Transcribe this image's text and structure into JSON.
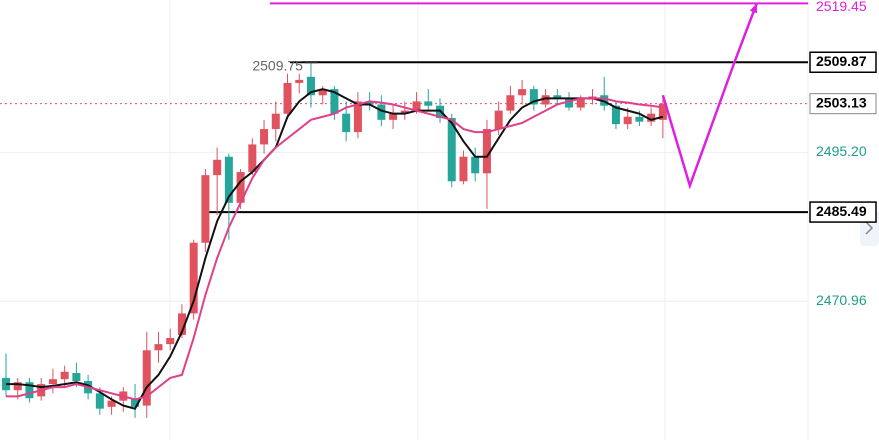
{
  "chart_data": {
    "type": "candlestick",
    "up_color": "#e0525e",
    "down_color": "#26a69a",
    "ylim": [
      2448.4,
      2520
    ],
    "yticks": [
      {
        "value": 2495.2,
        "label": "2495.20"
      },
      2470.96
    ],
    "grid": true,
    "open": [
      2458.5,
      2456.5,
      2457.8,
      2455.5,
      2457.5,
      2458.3,
      2459.3,
      2458.0,
      2456.0,
      2453.8,
      2454.8,
      2455.2,
      2454.0,
      2463.0,
      2464.0,
      2465.5,
      2469.0,
      2480.5,
      2491.5,
      2494.5,
      2487.0,
      2492.0,
      2496.5,
      2499.0,
      2501.5,
      2506.5,
      2507.5,
      2504.5,
      2505.5,
      2501.5,
      2498.5,
      2503.5,
      2503.0,
      2500.5,
      2501.5,
      2502.0,
      2503.5,
      2502.8,
      2500.8,
      2490.5,
      2494.5,
      2491.8,
      2499.0,
      2502.0,
      2504.5,
      2505.5,
      2503.0,
      2504.5,
      2504.0,
      2502.5,
      2503.8,
      2504.5,
      2502.8,
      2499.8,
      2501.0,
      2500.2,
      2500.5
    ],
    "high": [
      2462.5,
      2458.5,
      2458.5,
      2458.5,
      2460.0,
      2460.5,
      2461.0,
      2459.0,
      2457.0,
      2455.5,
      2457.0,
      2457.5,
      2466.0,
      2466.0,
      2466.5,
      2470.5,
      2481.0,
      2492.5,
      2496.0,
      2495.0,
      2492.5,
      2497.5,
      2500.5,
      2503.5,
      2508.0,
      2508.0,
      2509.75,
      2506.0,
      2506.0,
      2503.5,
      2505.0,
      2505.0,
      2504.5,
      2503.0,
      2503.5,
      2505.0,
      2505.5,
      2504.0,
      2501.5,
      2495.5,
      2496.0,
      2500.5,
      2503.5,
      2506.0,
      2507.0,
      2506.0,
      2505.5,
      2505.5,
      2505.0,
      2504.5,
      2505.5,
      2507.5,
      2503.5,
      2502.5,
      2502.0,
      2502.5,
      2504.5
    ],
    "low": [
      2455.5,
      2455.0,
      2454.5,
      2454.8,
      2456.0,
      2457.0,
      2457.0,
      2455.0,
      2452.5,
      2452.5,
      2453.0,
      2452.0,
      2452.0,
      2461.0,
      2463.0,
      2465.0,
      2468.0,
      2479.0,
      2485.0,
      2481.0,
      2486.0,
      2491.5,
      2495.0,
      2497.0,
      2501.0,
      2504.8,
      2502.5,
      2503.0,
      2500.5,
      2497.0,
      2497.5,
      2502.0,
      2499.5,
      2499.0,
      2500.5,
      2501.5,
      2502.0,
      2500.0,
      2489.5,
      2490.0,
      2490.5,
      2486.0,
      2498.0,
      2501.5,
      2503.0,
      2502.0,
      2502.5,
      2503.0,
      2502.0,
      2502.0,
      2503.0,
      2502.0,
      2499.0,
      2499.0,
      2499.5,
      2499.5,
      2497.5
    ],
    "close": [
      2456.5,
      2457.8,
      2455.2,
      2457.5,
      2458.3,
      2459.5,
      2458.0,
      2456.0,
      2453.5,
      2454.8,
      2456.3,
      2453.8,
      2463.0,
      2464.0,
      2465.0,
      2469.0,
      2480.5,
      2491.5,
      2494.0,
      2487.0,
      2492.0,
      2496.5,
      2499.0,
      2501.5,
      2506.5,
      2507.0,
      2504.5,
      2505.5,
      2501.5,
      2498.5,
      2503.5,
      2503.0,
      2500.5,
      2501.5,
      2502.0,
      2503.5,
      2502.8,
      2500.8,
      2490.5,
      2494.5,
      2491.8,
      2499.0,
      2502.0,
      2504.5,
      2505.5,
      2503.0,
      2504.5,
      2504.0,
      2502.5,
      2503.8,
      2504.3,
      2502.8,
      2499.8,
      2501.0,
      2500.2,
      2501.5,
      2503.13
    ],
    "series": [
      {
        "color": "#111111",
        "values": [
          2457.5,
          2457.5,
          2457.3,
          2457.0,
          2457.2,
          2457.5,
          2457.8,
          2457.3,
          2456.2,
          2455.0,
          2454.0,
          2453.5,
          2457.0,
          2459.0,
          2462.0,
          2466.0,
          2471.0,
          2478.0,
          2484.0,
          2488.0,
          2490.5,
          2492.0,
          2494.0,
          2496.0,
          2501.0,
          2503.5,
          2505.0,
          2505.5,
          2505.0,
          2504.0,
          2503.0,
          2503.0,
          2502.0,
          2501.5,
          2501.5,
          2502.0,
          2502.0,
          2502.0,
          2500.0,
          2497.0,
          2494.5,
          2494.5,
          2497.5,
          2500.5,
          2502.5,
          2503.5,
          2504.0,
          2504.0,
          2504.0,
          2504.0,
          2504.0,
          2503.5,
          2502.5,
          2502.0,
          2501.5,
          2500.5,
          2501.0
        ]
      },
      {
        "color": "#e0408a",
        "values": [
          2455.5,
          2455.5,
          2456.0,
          2456.5,
          2457.0,
          2457.0,
          2457.5,
          2457.0,
          2456.5,
          2456.0,
          2455.5,
          2455.0,
          2455.5,
          2457.0,
          2458.5,
          2459.0,
          2465.0,
          2472.0,
          2478.0,
          2483.0,
          2487.0,
          2491.0,
          2494.0,
          2496.0,
          2497.5,
          2499.0,
          2500.5,
          2501.0,
          2501.5,
          2502.5,
          2503.0,
          2503.5,
          2503.3,
          2503.0,
          2502.5,
          2502.0,
          2501.5,
          2501.0,
          2500.5,
          2499.0,
          2498.5,
          2498.5,
          2499.0,
          2499.5,
          2500.0,
          2501.0,
          2502.0,
          2503.0,
          2503.5,
          2504.0,
          2504.0,
          2504.0,
          2503.5,
          2503.3,
          2503.0,
          2502.8,
          2502.5
        ]
      }
    ],
    "levels": [
      {
        "value": 2519.45,
        "color": "#e020e0",
        "start": 22.5
      },
      {
        "value": 2509.87,
        "color": "#000000",
        "start": 24.2,
        "boxed": true
      },
      {
        "value": 2485.49,
        "color": "#000000",
        "start": 17,
        "boxed": true
      }
    ],
    "last_price": {
      "value": 2503.13,
      "color": "#e0526e"
    },
    "high_marker": {
      "value": 2509.75,
      "index": 26
    },
    "projection": {
      "color": "#e020e0",
      "x": [
        56,
        58.3,
        62.1,
        64
      ],
      "values": [
        2504.5,
        2489.8,
        2509.87,
        2519.45
      ]
    }
  }
}
